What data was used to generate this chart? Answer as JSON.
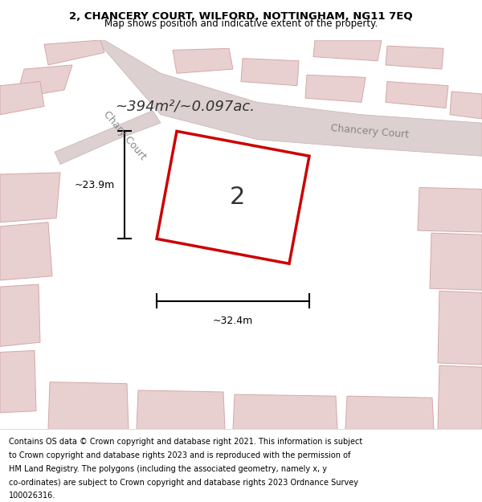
{
  "title_line1": "2, CHANCERY COURT, WILFORD, NOTTINGHAM, NG11 7EQ",
  "title_line2": "Map shows position and indicative extent of the property.",
  "footer_lines": [
    "Contains OS data © Crown copyright and database right 2021. This information is subject",
    "to Crown copyright and database rights 2023 and is reproduced with the permission of",
    "HM Land Registry. The polygons (including the associated geometry, namely x, y",
    "co-ordinates) are subject to Crown copyright and database rights 2023 Ordnance Survey",
    "100026316."
  ],
  "area_text": "~394m²/~0.097ac.",
  "plot_number": "2",
  "dim_width": "~32.4m",
  "dim_height": "~23.9m",
  "map_bg": "#f7f2f2",
  "building_color": "#e8d0d0",
  "building_edge": "#d4a8a8",
  "road_color": "#ddd0d0",
  "road_edge": "#c8b0b0",
  "highlight_color": "#cc0000",
  "street_label1": "Chary Court",
  "street_label2": "Chancery Court",
  "title_fontsize": 9.5,
  "subtitle_fontsize": 8.5,
  "footer_fontsize": 7.0,
  "area_fontsize": 13,
  "plot_num_fontsize": 22,
  "street_fontsize": 9,
  "dim_fontsize": 9
}
